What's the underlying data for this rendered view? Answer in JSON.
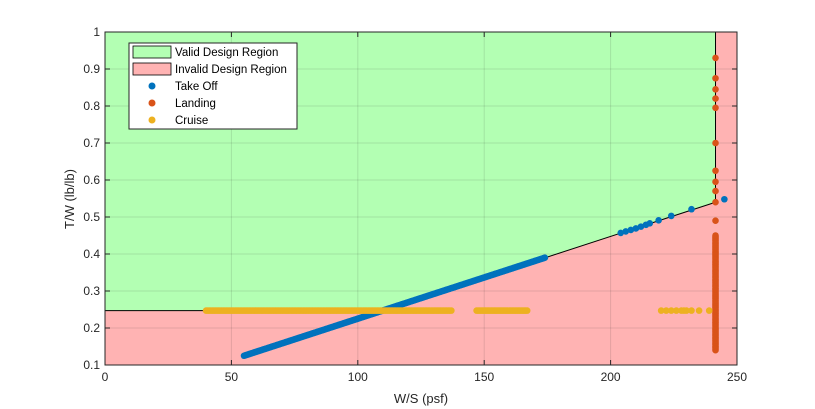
{
  "chart_data": {
    "type": "scatter",
    "xlabel": "W/S (psf)",
    "ylabel": "T/W (lb/lb)",
    "xlim": [
      0,
      250
    ],
    "ylim": [
      0.1,
      1.0
    ],
    "grid": true,
    "xticks": [
      "0",
      "50",
      "100",
      "150",
      "200",
      "250"
    ],
    "yticks": [
      "0.1",
      "0.2",
      "0.3",
      "0.4",
      "0.5",
      "0.6",
      "0.7",
      "0.8",
      "0.9",
      "1"
    ],
    "legend": {
      "placement": "top-left",
      "entries": [
        {
          "label": "Valid Design Region",
          "kind": "patch",
          "color": "#b3ffb3"
        },
        {
          "label": "Invalid Design Region",
          "kind": "patch",
          "color": "#ffb3b3"
        },
        {
          "label": "Take Off",
          "kind": "marker",
          "color": "#0072bd"
        },
        {
          "label": "Landing",
          "kind": "marker",
          "color": "#d95319"
        },
        {
          "label": "Cruise",
          "kind": "marker",
          "color": "#edb120"
        }
      ]
    },
    "regions": {
      "valid_color": "#b3ffb3",
      "invalid_color": "#ffb3b3",
      "boundary": [
        [
          0,
          0.247
        ],
        [
          110,
          0.247
        ],
        [
          241.5,
          0.54
        ],
        [
          241.5,
          1.0
        ]
      ]
    },
    "series": [
      {
        "name": "Take Off",
        "color": "#0072bd",
        "segments": [
          {
            "x_start": 55,
            "x_end": 174,
            "y_start": 0.125,
            "y_end": 0.39,
            "count": 240
          }
        ],
        "points": [
          {
            "x": 204,
            "y": 0.457
          },
          {
            "x": 206,
            "y": 0.461
          },
          {
            "x": 208,
            "y": 0.465
          },
          {
            "x": 210,
            "y": 0.469
          },
          {
            "x": 212,
            "y": 0.474
          },
          {
            "x": 214,
            "y": 0.479
          },
          {
            "x": 215.5,
            "y": 0.483
          },
          {
            "x": 219,
            "y": 0.491
          },
          {
            "x": 224,
            "y": 0.503
          },
          {
            "x": 232,
            "y": 0.521
          },
          {
            "x": 245,
            "y": 0.548
          }
        ]
      },
      {
        "name": "Landing",
        "color": "#d95319",
        "segments": [
          {
            "x_start": 241.5,
            "x_end": 241.5,
            "y_start": 0.14,
            "y_end": 0.45,
            "count": 90
          }
        ],
        "points": [
          {
            "x": 241.5,
            "y": 0.93
          },
          {
            "x": 241.5,
            "y": 0.875
          },
          {
            "x": 241.5,
            "y": 0.845
          },
          {
            "x": 241.5,
            "y": 0.82
          },
          {
            "x": 241.5,
            "y": 0.795
          },
          {
            "x": 241.5,
            "y": 0.7
          },
          {
            "x": 241.5,
            "y": 0.625
          },
          {
            "x": 241.5,
            "y": 0.595
          },
          {
            "x": 241.5,
            "y": 0.57
          },
          {
            "x": 241.5,
            "y": 0.54
          },
          {
            "x": 241.5,
            "y": 0.49
          }
        ]
      },
      {
        "name": "Cruise",
        "color": "#edb120",
        "segments": [
          {
            "x_start": 40,
            "x_end": 137,
            "y_start": 0.247,
            "y_end": 0.247,
            "count": 160
          },
          {
            "x_start": 147,
            "x_end": 167,
            "y_start": 0.247,
            "y_end": 0.247,
            "count": 35
          }
        ],
        "points": [
          {
            "x": 220,
            "y": 0.247
          },
          {
            "x": 222,
            "y": 0.247
          },
          {
            "x": 224,
            "y": 0.247
          },
          {
            "x": 226,
            "y": 0.247
          },
          {
            "x": 228,
            "y": 0.247
          },
          {
            "x": 229,
            "y": 0.247
          },
          {
            "x": 230,
            "y": 0.247
          },
          {
            "x": 232,
            "y": 0.247
          },
          {
            "x": 235,
            "y": 0.247
          },
          {
            "x": 239,
            "y": 0.247
          }
        ]
      }
    ]
  }
}
